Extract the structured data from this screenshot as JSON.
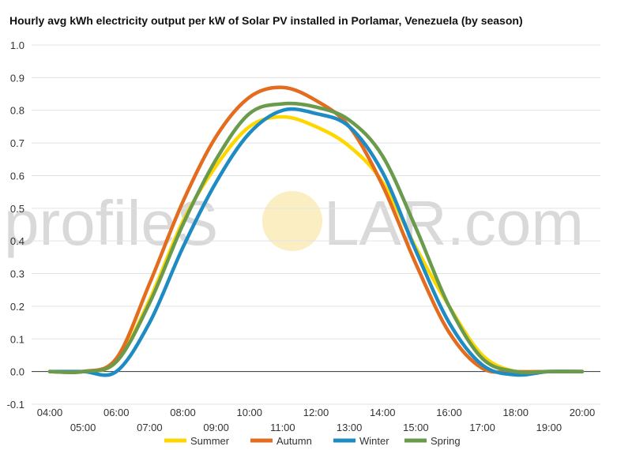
{
  "chart_data": {
    "type": "line",
    "title": "Hourly avg kWh electricity output per kW of Solar PV installed in Porlamar, Venezuela (by season)",
    "xlabel": "",
    "ylabel": "",
    "ylim": [
      -0.1,
      1.0
    ],
    "yticks": [
      "-0.1",
      "0.0",
      "0.1",
      "0.2",
      "0.3",
      "0.4",
      "0.5",
      "0.6",
      "0.7",
      "0.8",
      "0.9",
      "1.0"
    ],
    "x": [
      "04:00",
      "05:00",
      "06:00",
      "07:00",
      "08:00",
      "09:00",
      "10:00",
      "11:00",
      "12:00",
      "13:00",
      "14:00",
      "15:00",
      "16:00",
      "17:00",
      "18:00",
      "19:00",
      "20:00"
    ],
    "grid": true,
    "legend_position": "bottom",
    "watermark": {
      "left": "profileS",
      "right": "LAR.com"
    },
    "series": [
      {
        "name": "Summer",
        "color": "#FFD700",
        "values": [
          0.0,
          0.0,
          0.03,
          0.22,
          0.46,
          0.63,
          0.75,
          0.78,
          0.75,
          0.69,
          0.58,
          0.38,
          0.2,
          0.05,
          0.0,
          0.0,
          0.0
        ]
      },
      {
        "name": "Autumn",
        "color": "#E36C1E",
        "values": [
          0.0,
          0.0,
          0.04,
          0.27,
          0.52,
          0.72,
          0.84,
          0.87,
          0.83,
          0.75,
          0.57,
          0.33,
          0.12,
          0.01,
          0.0,
          0.0,
          0.0
        ]
      },
      {
        "name": "Winter",
        "color": "#1E8BC3",
        "values": [
          0.0,
          0.0,
          0.0,
          0.15,
          0.38,
          0.58,
          0.73,
          0.8,
          0.79,
          0.75,
          0.61,
          0.37,
          0.15,
          0.02,
          -0.01,
          0.0,
          0.0
        ]
      },
      {
        "name": "Spring",
        "color": "#6A9B4C",
        "values": [
          0.0,
          0.0,
          0.03,
          0.21,
          0.45,
          0.65,
          0.79,
          0.82,
          0.81,
          0.77,
          0.66,
          0.44,
          0.2,
          0.04,
          0.0,
          0.0,
          0.0
        ]
      }
    ]
  }
}
